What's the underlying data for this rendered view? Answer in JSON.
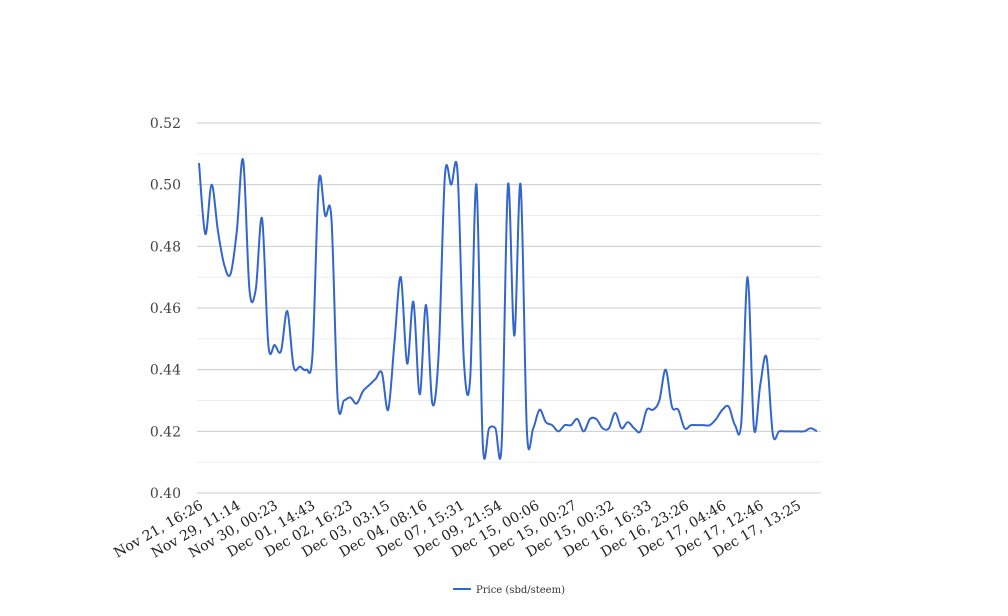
{
  "chart_data": {
    "type": "line",
    "title": "",
    "xlabel": "",
    "ylabel": "",
    "ylim": [
      0.4,
      0.52
    ],
    "yticks": [
      0.4,
      0.42,
      0.44,
      0.46,
      0.48,
      0.5,
      0.52
    ],
    "ytick_labels": [
      "0.40",
      "0.42",
      "0.44",
      "0.46",
      "0.48",
      "0.50",
      "0.52"
    ],
    "grid": true,
    "legend_position": "bottom-center",
    "x_tick_labels": [
      "Nov 21, 16:26",
      "Nov 29, 11:14",
      "Nov 30, 00:23",
      "Dec 01, 14:43",
      "Dec 02, 16:23",
      "Dec 03, 03:15",
      "Dec 04, 08:16",
      "Dec 07, 15:31",
      "Dec 09, 21:54",
      "Dec 15, 00:06",
      "Dec 15, 00:27",
      "Dec 15, 00:32",
      "Dec 16, 16:33",
      "Dec 16, 23:26",
      "Dec 17, 04:46",
      "Dec 17, 12:46",
      "Dec 17, 13:25"
    ],
    "series": [
      {
        "name": "Price (sbd/steem)",
        "color": "#3366cc",
        "values": [
          0.507,
          0.484,
          0.5,
          0.485,
          0.474,
          0.471,
          0.485,
          0.508,
          0.466,
          0.466,
          0.489,
          0.448,
          0.448,
          0.446,
          0.459,
          0.441,
          0.441,
          0.44,
          0.445,
          0.501,
          0.49,
          0.489,
          0.43,
          0.43,
          0.431,
          0.429,
          0.433,
          0.435,
          0.437,
          0.439,
          0.427,
          0.449,
          0.47,
          0.442,
          0.462,
          0.432,
          0.461,
          0.429,
          0.445,
          0.503,
          0.5,
          0.504,
          0.443,
          0.437,
          0.5,
          0.416,
          0.421,
          0.421,
          0.416,
          0.5,
          0.451,
          0.5,
          0.42,
          0.421,
          0.427,
          0.423,
          0.422,
          0.42,
          0.422,
          0.422,
          0.424,
          0.42,
          0.424,
          0.424,
          0.421,
          0.421,
          0.426,
          0.421,
          0.423,
          0.421,
          0.42,
          0.427,
          0.427,
          0.43,
          0.44,
          0.428,
          0.427,
          0.421,
          0.422,
          0.422,
          0.422,
          0.422,
          0.424,
          0.427,
          0.428,
          0.422,
          0.423,
          0.47,
          0.421,
          0.435,
          0.444,
          0.419,
          0.42,
          0.42,
          0.42,
          0.42,
          0.42,
          0.421,
          0.42
        ]
      }
    ]
  }
}
